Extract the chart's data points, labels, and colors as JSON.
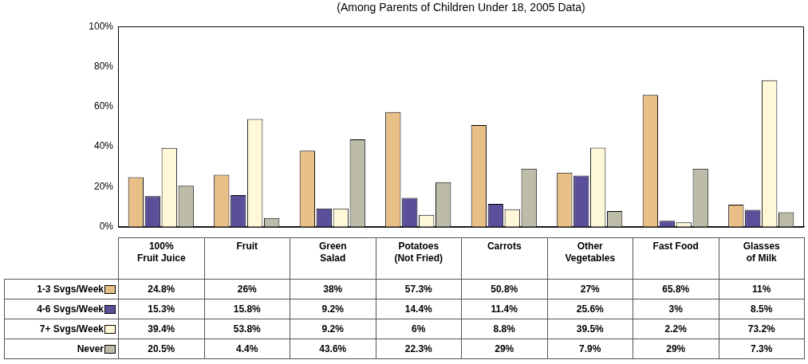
{
  "chart_data": {
    "type": "bar",
    "subtitle": "(Among Parents of Children Under 18, 2005 Data)",
    "categories": [
      "100%\nFruit Juice",
      "Fruit",
      "Green\nSalad",
      "Potatoes\n(Not Fried)",
      "Carrots",
      "Other\nVegetables",
      "Fast Food",
      "Glasses\nof Milk"
    ],
    "series": [
      {
        "name": "1-3 Svgs/Week",
        "color": "#e8bf86",
        "values": [
          24.8,
          26,
          38,
          57.3,
          50.8,
          27,
          65.8,
          11
        ],
        "value_labels": [
          "24.8%",
          "26%",
          "38%",
          "57.3%",
          "50.8%",
          "27%",
          "65.8%",
          "11%"
        ]
      },
      {
        "name": "4-6 Svgs/Week",
        "color": "#5a4f9a",
        "values": [
          15.3,
          15.8,
          9.2,
          14.4,
          11.4,
          25.6,
          3,
          8.5
        ],
        "value_labels": [
          "15.3%",
          "15.8%",
          "9.2%",
          "14.4%",
          "11.4%",
          "25.6%",
          "3%",
          "8.5%"
        ]
      },
      {
        "name": "7+ Svgs/Week",
        "color": "#fff8d8",
        "values": [
          39.4,
          53.8,
          9.2,
          6,
          8.8,
          39.5,
          2.2,
          73.2
        ],
        "value_labels": [
          "39.4%",
          "53.8%",
          "9.2%",
          "6%",
          "8.8%",
          "39.5%",
          "2.2%",
          "73.2%"
        ]
      },
      {
        "name": "Never",
        "color": "#bcbca8",
        "values": [
          20.5,
          4.4,
          43.6,
          22.3,
          29,
          7.9,
          29,
          7.3
        ],
        "value_labels": [
          "20.5%",
          "4.4%",
          "43.6%",
          "22.3%",
          "29%",
          "7.9%",
          "29%",
          "7.3%"
        ]
      }
    ],
    "ylim": [
      0,
      100
    ],
    "yticks": [
      {
        "value": 0,
        "label": "0%"
      },
      {
        "value": 20,
        "label": "20%"
      },
      {
        "value": 40,
        "label": "40%"
      },
      {
        "value": 60,
        "label": "60%"
      },
      {
        "value": 80,
        "label": "80%"
      },
      {
        "value": 100,
        "label": "100%"
      }
    ],
    "grid": false,
    "legend": "bottom left"
  }
}
